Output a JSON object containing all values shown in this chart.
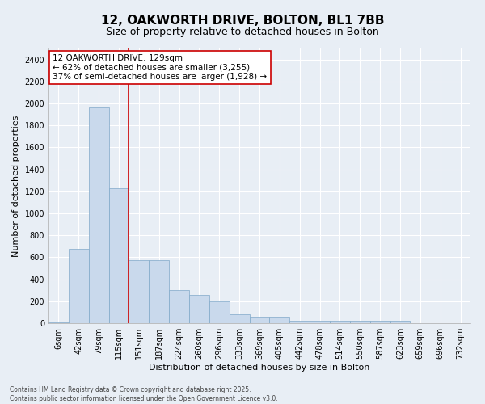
{
  "title_line1": "12, OAKWORTH DRIVE, BOLTON, BL1 7BB",
  "title_line2": "Size of property relative to detached houses in Bolton",
  "xlabel": "Distribution of detached houses by size in Bolton",
  "ylabel": "Number of detached properties",
  "categories": [
    "6sqm",
    "42sqm",
    "79sqm",
    "115sqm",
    "151sqm",
    "187sqm",
    "224sqm",
    "260sqm",
    "296sqm",
    "333sqm",
    "369sqm",
    "405sqm",
    "442sqm",
    "478sqm",
    "514sqm",
    "550sqm",
    "587sqm",
    "623sqm",
    "659sqm",
    "696sqm",
    "732sqm"
  ],
  "values": [
    10,
    680,
    1960,
    1230,
    570,
    570,
    300,
    260,
    200,
    80,
    60,
    60,
    20,
    20,
    20,
    20,
    20,
    20,
    0,
    0,
    0
  ],
  "bar_color": "#c9d9ec",
  "bar_edge_color": "#7fa8c9",
  "vline_color": "#cc0000",
  "annotation_text": "12 OAKWORTH DRIVE: 129sqm\n← 62% of detached houses are smaller (3,255)\n37% of semi-detached houses are larger (1,928) →",
  "annotation_box_color": "#ffffff",
  "annotation_box_edge_color": "#cc0000",
  "ylim_max": 2500,
  "yticks": [
    0,
    200,
    400,
    600,
    800,
    1000,
    1200,
    1400,
    1600,
    1800,
    2000,
    2200,
    2400
  ],
  "bg_color": "#e8eef5",
  "grid_color": "#ffffff",
  "footer_text": "Contains HM Land Registry data © Crown copyright and database right 2025.\nContains public sector information licensed under the Open Government Licence v3.0.",
  "title_fontsize": 11,
  "subtitle_fontsize": 9,
  "axis_label_fontsize": 8,
  "tick_fontsize": 7,
  "annotation_fontsize": 7.5,
  "footer_fontsize": 5.5
}
